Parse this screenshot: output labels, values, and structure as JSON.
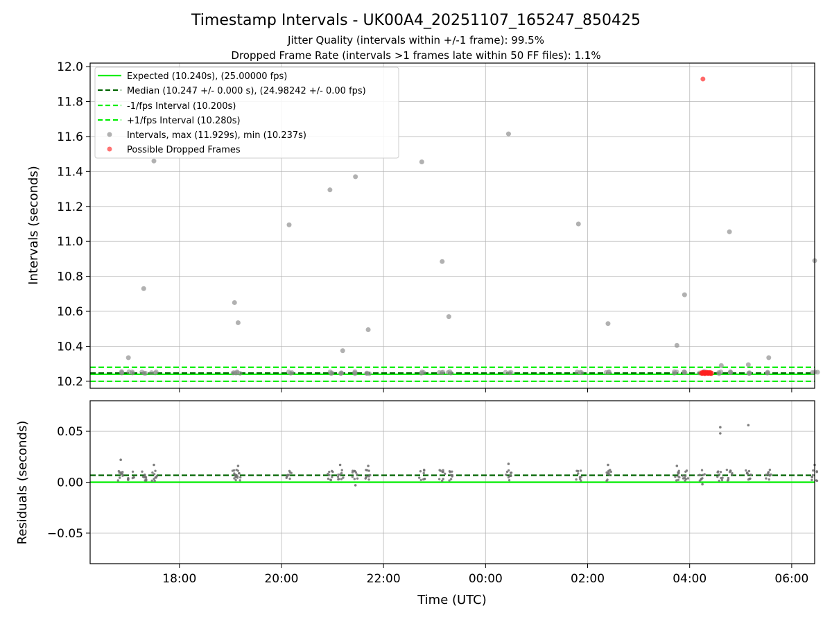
{
  "figure": {
    "title": "Timestamp Intervals - UK00A4_20251107_165247_850425",
    "subtitle_1": "Jitter Quality (intervals within +/-1 frame): 99.5%",
    "subtitle_2": "Dropped Frame Rate (intervals >1 frames late within 50 FF files): 1.1%"
  },
  "colors": {
    "expected": "#00ee00",
    "median": "#006400",
    "interval_points": "#909090",
    "dropped": "#ff4444",
    "grid": "#b0b0b0"
  },
  "chart_data": [
    {
      "type": "scatter",
      "panel": "top",
      "title": "Timestamp Intervals - UK00A4_20251107_165247_850425",
      "xlabel": "",
      "ylabel": "Intervals (seconds)",
      "xlim": [
        16.25,
        30.45
      ],
      "ylim": [
        10.16,
        12.02
      ],
      "x_ticks": [
        18,
        20,
        22,
        24,
        26,
        28,
        30
      ],
      "x_tick_labels": [
        "18:00",
        "20:00",
        "22:00",
        "00:00",
        "02:00",
        "04:00",
        "06:00"
      ],
      "y_ticks": [
        10.2,
        10.4,
        10.6,
        10.8,
        11.0,
        11.2,
        11.4,
        11.6,
        11.8,
        12.0
      ],
      "y_tick_labels": [
        "10.2",
        "10.4",
        "10.6",
        "10.8",
        "11.0",
        "11.2",
        "11.4",
        "11.6",
        "11.8",
        "12.0"
      ],
      "grid": true,
      "legend_position": "top-left",
      "legend": [
        {
          "label": "Expected (10.240s), (25.00000 fps)",
          "style": "solid-line",
          "color": "#00ee00"
        },
        {
          "label": "Median (10.247 +/- 0.000 s), (24.98242 +/- 0.00 fps)",
          "style": "dashed-line",
          "color": "#006400"
        },
        {
          "label": "-1/fps Interval (10.200s)",
          "style": "dashed-line",
          "color": "#00ee00"
        },
        {
          "label": "+1/fps Interval (10.280s)",
          "style": "dashed-line",
          "color": "#00ee00"
        },
        {
          "label": "Intervals, max (11.929s), min (10.237s)",
          "style": "dot",
          "color": "#909090"
        },
        {
          "label": "Possible Dropped Frames",
          "style": "dot",
          "color": "#ff4444"
        }
      ],
      "reference_lines": [
        {
          "name": "Expected",
          "y": 10.24,
          "style": "solid"
        },
        {
          "name": "Median",
          "y": 10.247,
          "style": "dashed"
        },
        {
          "name": "-1/fps",
          "y": 10.2,
          "style": "dashed"
        },
        {
          "name": "+1/fps",
          "y": 10.28,
          "style": "dashed"
        }
      ],
      "cluster_times": [
        16.85,
        17.05,
        17.3,
        17.5,
        19.08,
        19.15,
        20.15,
        20.95,
        21.15,
        21.45,
        21.7,
        22.75,
        23.15,
        23.3,
        24.45,
        25.82,
        26.4,
        27.75,
        27.92,
        28.25,
        28.6,
        28.78,
        29.15,
        29.55,
        30.45
      ],
      "base_interval": 10.247,
      "intervals": {
        "x": [
          17.0,
          17.3,
          17.5,
          19.08,
          19.15,
          20.15,
          20.95,
          21.2,
          21.45,
          21.7,
          22.75,
          23.15,
          23.28,
          24.45,
          25.82,
          26.4,
          27.75,
          27.9,
          28.62,
          28.78,
          29.15,
          29.55,
          30.45
        ],
        "y": [
          10.335,
          10.73,
          11.46,
          10.65,
          10.535,
          11.095,
          11.295,
          10.375,
          11.37,
          10.495,
          11.455,
          10.885,
          10.57,
          11.615,
          11.1,
          10.53,
          10.405,
          10.695,
          10.29,
          11.055,
          10.295,
          10.335,
          10.89
        ]
      },
      "dropped_frames": {
        "x": [
          28.26
        ],
        "y": [
          11.929
        ],
        "cluster_x": [
          28.24,
          28.27,
          28.3,
          28.33,
          28.36,
          28.39,
          28.42
        ],
        "cluster_y": [
          10.247,
          10.248,
          10.246,
          10.249,
          10.247,
          10.248,
          10.246
        ]
      }
    },
    {
      "type": "scatter",
      "panel": "bottom",
      "xlabel": "Time (UTC)",
      "ylabel": "Residuals (seconds)",
      "xlim": [
        16.25,
        30.45
      ],
      "ylim": [
        -0.08,
        0.08
      ],
      "x_ticks": [
        18,
        20,
        22,
        24,
        26,
        28,
        30
      ],
      "x_tick_labels": [
        "18:00",
        "20:00",
        "22:00",
        "00:00",
        "02:00",
        "04:00",
        "06:00"
      ],
      "y_ticks": [
        0.05,
        0.0,
        -0.05
      ],
      "y_tick_labels": [
        "0.05",
        "0.00",
        "−0.05"
      ],
      "grid": true,
      "reference_lines": [
        {
          "name": "Expected",
          "y": 0.0,
          "style": "solid"
        },
        {
          "name": "Median",
          "y": 0.0068,
          "style": "dashed"
        }
      ],
      "outliers": {
        "x": [
          16.85,
          17.5,
          19.15,
          21.15,
          21.45,
          21.7,
          24.45,
          26.4,
          27.75,
          28.25,
          28.6,
          28.6,
          29.15,
          30.45
        ],
        "y": [
          0.022,
          0.017,
          0.016,
          0.017,
          -0.003,
          0.016,
          0.018,
          0.017,
          0.016,
          -0.002,
          0.054,
          0.048,
          0.056,
          0.017
        ]
      }
    }
  ]
}
